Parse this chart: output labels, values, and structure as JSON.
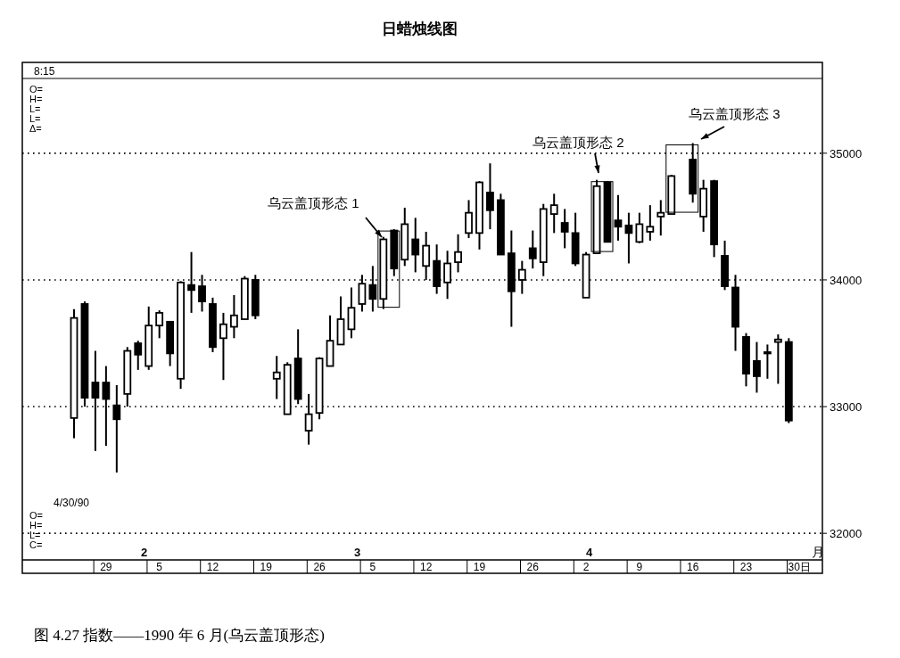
{
  "chart_data": {
    "type": "candlestick",
    "title": "日蜡烛线图",
    "categories": [
      null,
      null,
      null,
      "29",
      null,
      null,
      null,
      null,
      "5",
      null,
      null,
      null,
      null,
      "12",
      null,
      null,
      null,
      null,
      "19",
      null,
      null,
      null,
      null,
      "26",
      null,
      null,
      null,
      null,
      "5",
      null,
      null,
      null,
      null,
      "12",
      null,
      null,
      null,
      null,
      "19",
      null,
      null,
      null,
      null,
      "26",
      null,
      null,
      null,
      null,
      "2",
      null,
      null,
      null,
      null,
      "9",
      null,
      null,
      null,
      null,
      "16",
      null,
      null,
      null,
      null,
      "23",
      null,
      null,
      null,
      null,
      "30日"
    ],
    "ohlc": [
      [
        32910,
        33770,
        32750,
        33700
      ],
      [
        33810,
        33830,
        33000,
        33070
      ],
      [
        33190,
        33440,
        32650,
        33070
      ],
      [
        33190,
        33320,
        32690,
        33060
      ],
      [
        33010,
        33170,
        32480,
        32900
      ],
      [
        33100,
        33470,
        33000,
        33440
      ],
      [
        33500,
        33520,
        33290,
        33410
      ],
      [
        33320,
        33790,
        33290,
        33640
      ],
      [
        33640,
        33760,
        33540,
        33740
      ],
      [
        33670,
        33670,
        33320,
        33420
      ],
      [
        33220,
        33990,
        33140,
        33980
      ],
      [
        33960,
        34220,
        33740,
        33920
      ],
      [
        33950,
        34040,
        33750,
        33830
      ],
      [
        33810,
        33860,
        33430,
        33470
      ],
      [
        33540,
        33740,
        33210,
        33650
      ],
      [
        33630,
        33880,
        33540,
        33720
      ],
      [
        33690,
        34030,
        33690,
        34010
      ],
      [
        34000,
        34040,
        33690,
        33720
      ],
      null,
      [
        33220,
        33400,
        33060,
        33270
      ],
      [
        32940,
        33350,
        32940,
        33330
      ],
      [
        33380,
        33610,
        33020,
        33060
      ],
      [
        32810,
        33100,
        32700,
        32940
      ],
      [
        32950,
        33390,
        32900,
        33380
      ],
      [
        33320,
        33720,
        33320,
        33520
      ],
      [
        33490,
        33870,
        33490,
        33690
      ],
      [
        33610,
        33940,
        33540,
        33780
      ],
      [
        33810,
        34040,
        33750,
        33970
      ],
      [
        33960,
        34110,
        33750,
        33850
      ],
      [
        33850,
        34340,
        33770,
        34320
      ],
      [
        34390,
        34400,
        34030,
        34090
      ],
      [
        34160,
        34570,
        34110,
        34440
      ],
      [
        34320,
        34490,
        34060,
        34200
      ],
      [
        34110,
        34380,
        34000,
        34270
      ],
      [
        34150,
        34280,
        33890,
        33950
      ],
      [
        33980,
        34230,
        33850,
        34130
      ],
      [
        34140,
        34360,
        34060,
        34220
      ],
      [
        34370,
        34630,
        34330,
        34530
      ],
      [
        34370,
        34780,
        34240,
        34770
      ],
      [
        34690,
        34920,
        34400,
        34550
      ],
      [
        34630,
        34680,
        34200,
        34200
      ],
      [
        34210,
        34390,
        33630,
        33910
      ],
      [
        34000,
        34150,
        33890,
        34080
      ],
      [
        34250,
        34390,
        34090,
        34170
      ],
      [
        34140,
        34600,
        34030,
        34560
      ],
      [
        34520,
        34680,
        34370,
        34590
      ],
      [
        34450,
        34560,
        34250,
        34380
      ],
      [
        34370,
        34530,
        34110,
        34130
      ],
      [
        33860,
        34220,
        33860,
        34200
      ],
      [
        34210,
        34790,
        34210,
        34740
      ],
      [
        34770,
        34780,
        34300,
        34300
      ],
      [
        34470,
        34670,
        34310,
        34420
      ],
      [
        34430,
        34530,
        34130,
        34370
      ],
      [
        34300,
        34530,
        34290,
        34440
      ],
      [
        34380,
        34590,
        34310,
        34420
      ],
      [
        34500,
        34630,
        34350,
        34530
      ],
      [
        34520,
        34830,
        34520,
        34820
      ],
      null,
      [
        34950,
        35080,
        34610,
        34680
      ],
      [
        34500,
        34790,
        34380,
        34720
      ],
      [
        34780,
        34790,
        34180,
        34280
      ],
      [
        34190,
        34310,
        33920,
        33950
      ],
      [
        33940,
        34040,
        33440,
        33630
      ],
      [
        33550,
        33580,
        33160,
        33260
      ],
      [
        33360,
        33510,
        33110,
        33240
      ],
      [
        33430,
        33490,
        33220,
        33430
      ],
      [
        33510,
        33570,
        33180,
        33530
      ],
      [
        33510,
        33540,
        32870,
        32890
      ],
      null
    ],
    "ylim": [
      31790,
      35590
    ],
    "yticks": [
      32000,
      33000,
      34000,
      35000
    ],
    "grid": "y",
    "annotations": [
      "乌云盖顶形态 1",
      "乌云盖顶形态 2",
      "乌云盖顶形态 3",
      "8:15",
      "O=\nH=\nL=\nL=\nΔ=",
      "4/30/90",
      "O=\nH=\nL=\nC=",
      "2",
      "3",
      "4",
      "月",
      "图 4.27 指数——1990 年 6 月(乌云盖顶形态)"
    ]
  }
}
